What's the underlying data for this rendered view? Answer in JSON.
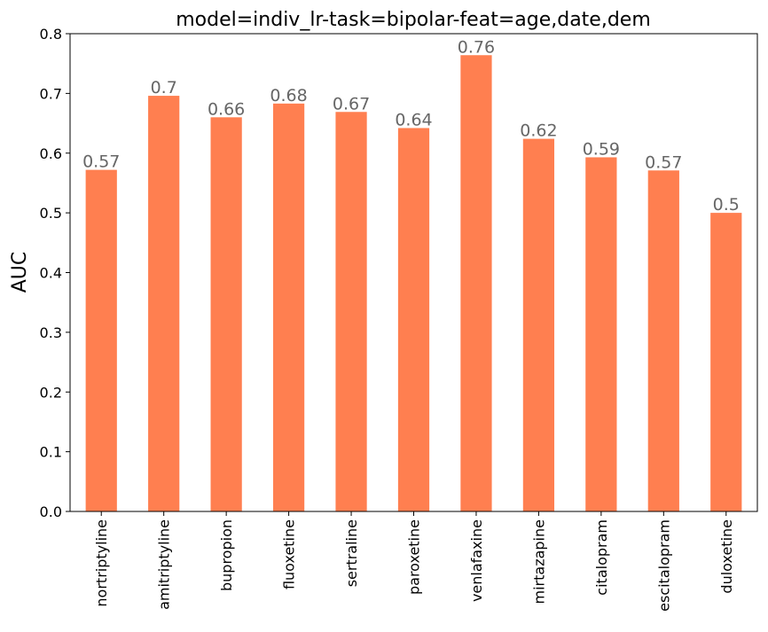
{
  "chart_data": {
    "type": "bar",
    "title": "model=indiv_lr-task=bipolar-feat=age,date,dem",
    "xlabel": "",
    "ylabel": "AUC",
    "ylim": [
      0,
      0.8
    ],
    "yticks": [
      "0.0",
      "0.1",
      "0.2",
      "0.3",
      "0.4",
      "0.5",
      "0.6",
      "0.7",
      "0.8"
    ],
    "categories": [
      "nortriptyline",
      "amitriptyline",
      "bupropion",
      "fluoxetine",
      "sertraline",
      "paroxetine",
      "venlafaxine",
      "mirtazapine",
      "citalopram",
      "escitalopram",
      "duloxetine"
    ],
    "values": [
      0.572,
      0.696,
      0.66,
      0.683,
      0.669,
      0.642,
      0.764,
      0.624,
      0.593,
      0.571,
      0.5
    ],
    "data_labels": [
      "0.57",
      "0.7",
      "0.66",
      "0.68",
      "0.67",
      "0.64",
      "0.76",
      "0.62",
      "0.59",
      "0.57",
      "0.5"
    ],
    "grid": false,
    "legend": "none",
    "bar_color": "#ff7f50",
    "data_label_color": "#666666"
  }
}
